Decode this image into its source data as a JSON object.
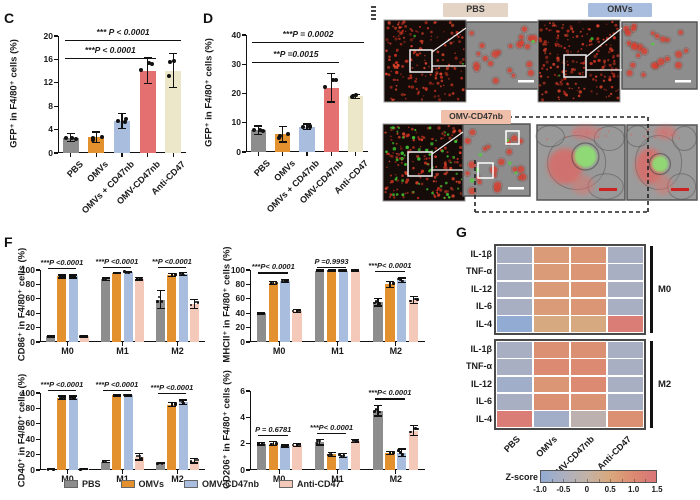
{
  "panel_labels": {
    "C": "C",
    "D": "D",
    "F": "F",
    "G": "G"
  },
  "legend": {
    "items": [
      {
        "label": "PBS",
        "color": "#8d8d8d"
      },
      {
        "label": "OMVs",
        "color": "#e2912e"
      },
      {
        "label": "OMV-CD47nb",
        "color": "#a9bede"
      },
      {
        "label": "Anti-CD47",
        "color": "#f4c9ba"
      }
    ]
  },
  "microscopy": {
    "groups": [
      {
        "label": "PBS",
        "label_bg": "#e4d4c5"
      },
      {
        "label": "OMVs",
        "label_bg": "#a9bede"
      },
      {
        "label": "OMV-CD47nb",
        "label_bg": "#f0bfa9"
      }
    ],
    "fluor_colors": {
      "red": "#c5301f",
      "green": "#3db82e"
    },
    "scalebar_colors": {
      "inset": "#ffffff",
      "closeup": "#cc2222"
    }
  },
  "chart_data": [
    {
      "id": "C",
      "type": "bar",
      "ylabel": "GFP⁺ in F4/80⁺ cells (%)",
      "categories": [
        "PBS",
        "OMVs",
        "OMVs + CD47nb",
        "OMV-CD47nb",
        "Anti-CD47"
      ],
      "values": [
        2.6,
        2.7,
        5.5,
        14.1,
        14.1
      ],
      "errors": [
        0.7,
        0.9,
        1.3,
        2.2,
        2.9
      ],
      "bar_colors": [
        "#8d8d8d",
        "#e2912e",
        "#a9bede",
        "#e57070",
        "#ece7c8"
      ],
      "ylim": [
        0,
        20
      ],
      "yticks": [
        0,
        4,
        8,
        12,
        16,
        20
      ],
      "annotations": [
        {
          "text": "*** P < 0.0001",
          "from": 0,
          "to": 4
        },
        {
          "text": "***P < 0.0001",
          "from": 0,
          "to": 3
        }
      ]
    },
    {
      "id": "D",
      "type": "bar",
      "ylabel": "GFP⁺ in F4/80⁺ cells (%)",
      "categories": [
        "PBS",
        "OMVs",
        "OMVs + CD47nb",
        "OMV-CD47nb",
        "Anti-CD47"
      ],
      "values": [
        7.5,
        6.0,
        8.7,
        22.0,
        19.0
      ],
      "errors": [
        1.4,
        2.6,
        0.9,
        4.9,
        0.6
      ],
      "bar_colors": [
        "#8d8d8d",
        "#e2912e",
        "#a9bede",
        "#e57070",
        "#ece7c8"
      ],
      "ylim": [
        0,
        40
      ],
      "yticks": [
        0,
        10,
        20,
        30,
        40
      ],
      "annotations": [
        {
          "text": "***P = 0.0002",
          "from": 0,
          "to": 4
        },
        {
          "text": "**P =0.0015",
          "from": 0,
          "to": 3
        }
      ]
    },
    {
      "id": "F_CD86",
      "type": "bar-grouped",
      "ylabel": "CD86⁺ in F4/80⁺ cells (%)",
      "categories": [
        "M0",
        "M1",
        "M2"
      ],
      "series": [
        {
          "name": "PBS",
          "color": "#8d8d8d",
          "values": [
            8,
            87,
            59
          ],
          "errors": [
            1,
            2,
            13
          ]
        },
        {
          "name": "OMVs",
          "color": "#e2912e",
          "values": [
            91,
            96,
            93
          ],
          "errors": [
            2,
            1,
            2
          ]
        },
        {
          "name": "OMV-CD47nb",
          "color": "#a9bede",
          "values": [
            91,
            97,
            94
          ],
          "errors": [
            2,
            1,
            2
          ]
        },
        {
          "name": "Anti-CD47",
          "color": "#f4c9ba",
          "values": [
            8,
            88,
            53
          ],
          "errors": [
            1,
            2,
            6
          ]
        }
      ],
      "ylim": [
        0,
        100
      ],
      "yticks": [
        0,
        20,
        40,
        60,
        80,
        100
      ],
      "group_annotations": [
        "***P <0.0001",
        "***P <0.0001",
        "**P <0.0001"
      ]
    },
    {
      "id": "F_MHCII",
      "type": "bar-grouped",
      "ylabel": "MHCII⁺ in F4/80⁺ cells (%)",
      "categories": [
        "M0",
        "M1",
        "M2"
      ],
      "series": [
        {
          "name": "PBS",
          "color": "#8d8d8d",
          "values": [
            40,
            99,
            55
          ],
          "errors": [
            1,
            1,
            5
          ]
        },
        {
          "name": "OMVs",
          "color": "#e2912e",
          "values": [
            82,
            99,
            80
          ],
          "errors": [
            2,
            1,
            4
          ]
        },
        {
          "name": "OMV-CD47nb",
          "color": "#a9bede",
          "values": [
            85,
            99,
            86
          ],
          "errors": [
            2,
            1,
            3
          ]
        },
        {
          "name": "Anti-CD47",
          "color": "#f4c9ba",
          "values": [
            43,
            99,
            58
          ],
          "errors": [
            2,
            1,
            5
          ]
        }
      ],
      "ylim": [
        0,
        100
      ],
      "yticks": [
        0,
        20,
        40,
        60,
        80,
        100
      ],
      "group_annotations": [
        "***P< 0.0001",
        "P =0.9993",
        "***P< 0.0001"
      ]
    },
    {
      "id": "F_CD40",
      "type": "bar-grouped",
      "ylabel": "CD40⁺ in F4/80⁺ cells (%)",
      "categories": [
        "M0",
        "M1",
        "M2"
      ],
      "series": [
        {
          "name": "PBS",
          "color": "#8d8d8d",
          "values": [
            1,
            11,
            9
          ],
          "errors": [
            0.5,
            1,
            1
          ]
        },
        {
          "name": "OMVs",
          "color": "#e2912e",
          "values": [
            94,
            97,
            85
          ],
          "errors": [
            2,
            1,
            3
          ]
        },
        {
          "name": "OMV-CD47nb",
          "color": "#a9bede",
          "values": [
            94,
            97,
            88
          ],
          "errors": [
            2,
            1,
            3
          ]
        },
        {
          "name": "Anti-CD47",
          "color": "#f4c9ba",
          "values": [
            1,
            17,
            12
          ],
          "errors": [
            0.5,
            4,
            3
          ]
        }
      ],
      "ylim": [
        0,
        100
      ],
      "yticks": [
        0,
        20,
        40,
        60,
        80,
        100
      ],
      "group_annotations": [
        "***P <0.0001",
        "***P <0.0001",
        "***P <0.0001"
      ]
    },
    {
      "id": "F_CD206",
      "type": "bar-grouped",
      "ylabel": "CD206⁺ in F4/80⁺ cells (%)",
      "categories": [
        "M0",
        "M1",
        "M2"
      ],
      "series": [
        {
          "name": "PBS",
          "color": "#8d8d8d",
          "values": [
            2.0,
            2.1,
            4.5
          ],
          "errors": [
            0.1,
            0.2,
            0.4
          ]
        },
        {
          "name": "OMVs",
          "color": "#e2912e",
          "values": [
            2.0,
            1.2,
            1.3
          ],
          "errors": [
            0.15,
            0.15,
            0.1
          ]
        },
        {
          "name": "OMV-CD47nb",
          "color": "#a9bede",
          "values": [
            1.8,
            1.1,
            1.3
          ],
          "errors": [
            0.1,
            0.15,
            0.3
          ]
        },
        {
          "name": "Anti-CD47",
          "color": "#f4c9ba",
          "values": [
            1.9,
            2.2,
            3.0
          ],
          "errors": [
            0.1,
            0.1,
            0.4
          ]
        }
      ],
      "ylim": [
        0,
        6
      ],
      "yticks": [
        0,
        2,
        4,
        6
      ],
      "group_annotations": [
        "P = 0.6781",
        "***P< 0.0001",
        "***P< 0.0001"
      ]
    },
    {
      "id": "G",
      "type": "heatmap",
      "rows": [
        "IL-1β",
        "TNF-α",
        "IL-12",
        "IL-6",
        "IL-4"
      ],
      "cols": [
        "PBS",
        "OMVs",
        "OMV-CD47nb",
        "Anti-CD47"
      ],
      "blocks": [
        {
          "name": "M0",
          "z": [
            [
              -0.6,
              0.7,
              0.8,
              -0.6
            ],
            [
              -0.6,
              0.7,
              0.8,
              -0.6
            ],
            [
              -0.6,
              0.7,
              0.8,
              -0.55
            ],
            [
              -0.6,
              0.7,
              0.8,
              -0.6
            ],
            [
              -1.0,
              0.45,
              0.45,
              1.3
            ]
          ]
        },
        {
          "name": "M2",
          "z": [
            [
              -0.6,
              0.9,
              0.9,
              -0.6
            ],
            [
              -0.6,
              1.0,
              1.0,
              -0.6
            ],
            [
              -0.75,
              0.8,
              1.0,
              -0.6
            ],
            [
              -0.6,
              0.9,
              0.85,
              -0.6
            ],
            [
              1.3,
              -0.7,
              -0.15,
              0.9
            ]
          ]
        }
      ],
      "colorbar": {
        "label": "Z-score",
        "ticks": [
          "-1.0",
          "-0.5",
          "0",
          "0.5",
          "1.0",
          "1.5"
        ],
        "tick_values": [
          -1.0,
          -0.5,
          0,
          0.5,
          1.0,
          1.5
        ],
        "stops": [
          {
            "v": -1.0,
            "c": "#92abd3"
          },
          {
            "v": -0.5,
            "c": "#adb0bf"
          },
          {
            "v": 0.0,
            "c": "#c2b2a6"
          },
          {
            "v": 0.5,
            "c": "#d9a87c"
          },
          {
            "v": 1.0,
            "c": "#dc8a72"
          },
          {
            "v": 1.5,
            "c": "#d97578"
          }
        ]
      }
    }
  ]
}
